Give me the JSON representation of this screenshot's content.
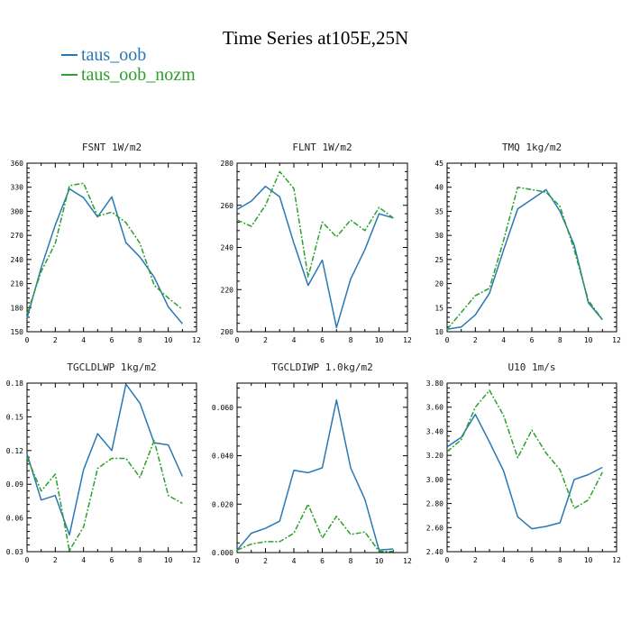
{
  "figure": {
    "title": "Time Series at105E,25N",
    "series": [
      {
        "name": "taus_oob",
        "color": "#2878b4"
      },
      {
        "name": "taus_oob_nozm",
        "color": "#2ca02c"
      }
    ]
  },
  "chart_data": [
    {
      "type": "line",
      "title": "FSNT  1W/m2",
      "x": [
        0,
        1,
        2,
        3,
        4,
        5,
        6,
        7,
        8,
        9,
        10,
        11
      ],
      "xlim": [
        0,
        12
      ],
      "xticks": [
        0,
        2,
        4,
        6,
        8,
        10,
        12
      ],
      "ylim": [
        150,
        360
      ],
      "yticks": [
        150,
        180,
        210,
        240,
        270,
        300,
        330,
        360
      ],
      "ytick_labels": [
        "150",
        "180",
        "210",
        "240",
        "270",
        "300",
        "330",
        "360"
      ],
      "series": [
        {
          "name": "taus_oob",
          "values": [
            167,
            230,
            283,
            328,
            317,
            293,
            318,
            261,
            243,
            218,
            181,
            160
          ]
        },
        {
          "name": "taus_oob_nozm",
          "values": [
            172,
            225,
            260,
            332,
            335,
            294,
            299,
            286,
            260,
            208,
            192,
            178
          ]
        }
      ]
    },
    {
      "type": "line",
      "title": "FLNT  1W/m2",
      "x": [
        0,
        1,
        2,
        3,
        4,
        5,
        6,
        7,
        8,
        9,
        10,
        11
      ],
      "xlim": [
        0,
        12
      ],
      "xticks": [
        0,
        2,
        4,
        6,
        8,
        10,
        12
      ],
      "ylim": [
        200,
        280
      ],
      "yticks": [
        200,
        220,
        240,
        260,
        280
      ],
      "ytick_labels": [
        "200",
        "220",
        "240",
        "260",
        "280"
      ],
      "series": [
        {
          "name": "taus_oob",
          "values": [
            258,
            262,
            269,
            264,
            242,
            222,
            234,
            202,
            225,
            239,
            256,
            254
          ]
        },
        {
          "name": "taus_oob_nozm",
          "values": [
            253,
            250,
            260,
            276,
            268,
            226,
            252,
            245,
            253,
            248,
            259,
            254
          ]
        }
      ]
    },
    {
      "type": "line",
      "title": "TMQ  1kg/m2",
      "x": [
        0,
        1,
        2,
        3,
        4,
        5,
        6,
        7,
        8,
        9,
        10,
        11
      ],
      "xlim": [
        0,
        12
      ],
      "xticks": [
        0,
        2,
        4,
        6,
        8,
        10,
        12
      ],
      "ylim": [
        10,
        45
      ],
      "yticks": [
        10,
        15,
        20,
        25,
        30,
        35,
        40,
        45
      ],
      "ytick_labels": [
        "10",
        "15",
        "20",
        "25",
        "30",
        "35",
        "40",
        "45"
      ],
      "series": [
        {
          "name": "taus_oob",
          "values": [
            10.5,
            11,
            13.5,
            18,
            27,
            35.5,
            37.5,
            39.5,
            35,
            28,
            16,
            12.5
          ]
        },
        {
          "name": "taus_oob_nozm",
          "values": [
            10.5,
            14,
            17.5,
            19,
            29,
            40,
            39.5,
            39,
            36,
            27,
            16.5,
            12.5
          ]
        }
      ]
    },
    {
      "type": "line",
      "title": "TGCLDLWP  1kg/m2",
      "x": [
        0,
        1,
        2,
        3,
        4,
        5,
        6,
        7,
        8,
        9,
        10,
        11
      ],
      "xlim": [
        0,
        12
      ],
      "xticks": [
        0,
        2,
        4,
        6,
        8,
        10,
        12
      ],
      "ylim": [
        0.03,
        0.18
      ],
      "yticks": [
        0.03,
        0.06,
        0.09,
        0.12,
        0.15,
        0.18
      ],
      "ytick_labels": [
        "0.03",
        "0.06",
        "0.09",
        "0.12",
        "0.15",
        "0.18"
      ],
      "series": [
        {
          "name": "taus_oob",
          "values": [
            0.117,
            0.076,
            0.08,
            0.045,
            0.103,
            0.135,
            0.12,
            0.179,
            0.162,
            0.127,
            0.125,
            0.097
          ]
        },
        {
          "name": "taus_oob_nozm",
          "values": [
            0.114,
            0.084,
            0.099,
            0.031,
            0.052,
            0.104,
            0.113,
            0.113,
            0.096,
            0.129,
            0.08,
            0.073
          ]
        }
      ]
    },
    {
      "type": "line",
      "title": "TGCLDIWP  1.0kg/m2",
      "x": [
        0,
        1,
        2,
        3,
        4,
        5,
        6,
        7,
        8,
        9,
        10,
        11
      ],
      "xlim": [
        0,
        12
      ],
      "xticks": [
        0,
        2,
        4,
        6,
        8,
        10,
        12
      ],
      "ylim": [
        0,
        0.07
      ],
      "yticks": [
        0,
        0.02,
        0.04,
        0.06
      ],
      "ytick_labels": [
        "0.000",
        "0.020",
        "0.040",
        "0.060"
      ],
      "series": [
        {
          "name": "taus_oob",
          "values": [
            0.001,
            0.008,
            0.01,
            0.013,
            0.034,
            0.033,
            0.035,
            0.063,
            0.035,
            0.022,
            0.001,
            0.0015
          ]
        },
        {
          "name": "taus_oob_nozm",
          "values": [
            0.001,
            0.0035,
            0.0045,
            0.0045,
            0.008,
            0.02,
            0.006,
            0.015,
            0.0075,
            0.0085,
            0.0005,
            0.0005
          ]
        }
      ]
    },
    {
      "type": "line",
      "title": "U10  1m/s",
      "x": [
        0,
        1,
        2,
        3,
        4,
        5,
        6,
        7,
        8,
        9,
        10,
        11
      ],
      "xlim": [
        0,
        12
      ],
      "xticks": [
        0,
        2,
        4,
        6,
        8,
        10,
        12
      ],
      "ylim": [
        2.4,
        3.8
      ],
      "yticks": [
        2.4,
        2.6,
        2.8,
        3.0,
        3.2,
        3.4,
        3.6,
        3.8
      ],
      "ytick_labels": [
        "2.40",
        "2.60",
        "2.80",
        "3.00",
        "3.20",
        "3.40",
        "3.60",
        "3.80"
      ],
      "series": [
        {
          "name": "taus_oob",
          "values": [
            3.27,
            3.35,
            3.54,
            3.31,
            3.07,
            2.69,
            2.59,
            2.61,
            2.64,
            3.0,
            3.04,
            3.1
          ]
        },
        {
          "name": "taus_oob_nozm",
          "values": [
            3.23,
            3.33,
            3.6,
            3.74,
            3.53,
            3.18,
            3.41,
            3.22,
            3.08,
            2.76,
            2.83,
            3.06
          ]
        }
      ]
    }
  ]
}
